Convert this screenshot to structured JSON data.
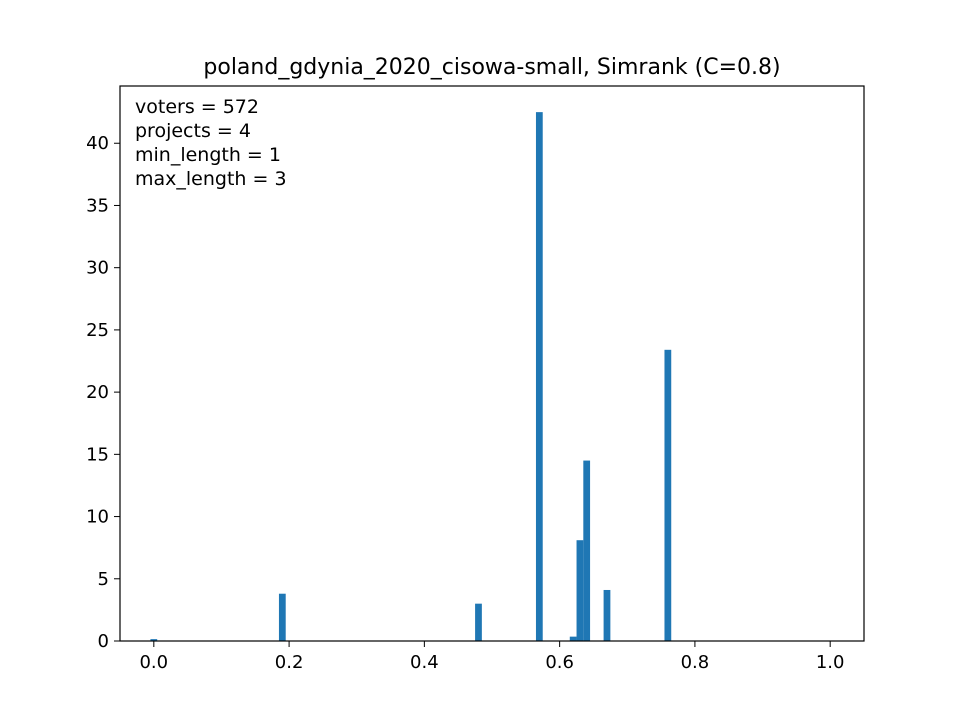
{
  "chart_data": {
    "type": "bar",
    "title": "poland_gdynia_2020_cisowa-small, Simrank (C=0.8)",
    "xlabel": "",
    "ylabel": "",
    "xlim": [
      -0.05,
      1.05
    ],
    "ylim": [
      0,
      44.6
    ],
    "xticks": [
      0.0,
      0.2,
      0.4,
      0.6,
      0.8,
      1.0
    ],
    "xtick_labels": [
      "0.0",
      "0.2",
      "0.4",
      "0.6",
      "0.8",
      "1.0"
    ],
    "yticks": [
      0,
      5,
      10,
      15,
      20,
      25,
      30,
      35,
      40
    ],
    "ytick_labels": [
      "0",
      "5",
      "10",
      "15",
      "20",
      "25",
      "30",
      "35",
      "40"
    ],
    "bin_width": 0.01,
    "color": "#1f77b4",
    "grid": false,
    "annotations": [
      "voters = 572",
      "projects = 4",
      "min_length = 1",
      "max_length = 3"
    ],
    "bars": [
      {
        "x": 0.0,
        "value": 0.15
      },
      {
        "x": 0.19,
        "value": 3.8
      },
      {
        "x": 0.48,
        "value": 3.0
      },
      {
        "x": 0.57,
        "value": 42.5
      },
      {
        "x": 0.62,
        "value": 0.35
      },
      {
        "x": 0.63,
        "value": 8.1
      },
      {
        "x": 0.64,
        "value": 14.5
      },
      {
        "x": 0.67,
        "value": 4.1
      },
      {
        "x": 0.76,
        "value": 23.4
      }
    ]
  }
}
